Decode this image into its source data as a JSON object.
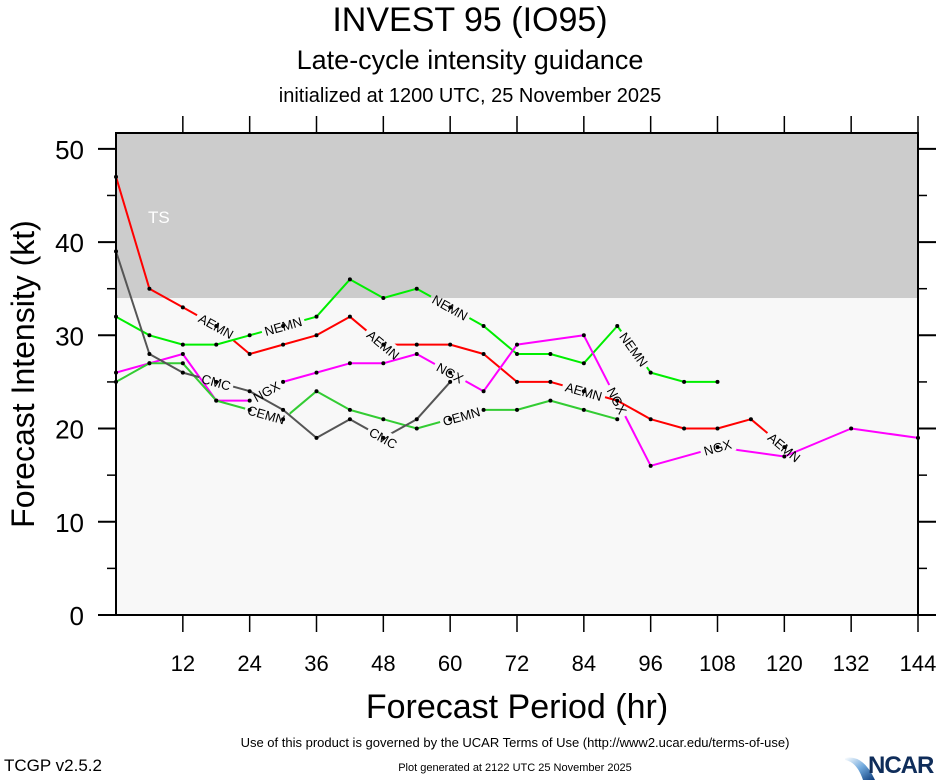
{
  "header": {
    "title": "INVEST 95 (IO95)",
    "subtitle": "Late-cycle intensity guidance",
    "init_line": "initialized at 1200 UTC, 25 November 2025"
  },
  "footer": {
    "terms": "Use of this product is governed by the UCAR Terms of Use (http://www2.ucar.edu/terms-of-use)",
    "generated": "Plot generated at 2122 UTC   25 November 2025",
    "version": "TCGP v2.5.2",
    "logo_text": "NCAR"
  },
  "chart_data": {
    "type": "line",
    "title": "INVEST 95 (IO95)",
    "xlabel": "Forecast Period (hr)",
    "ylabel": "Forecast Intensity (kt)",
    "xlim": [
      0,
      144
    ],
    "ylim": [
      0,
      51.7
    ],
    "xticks": [
      12,
      24,
      36,
      48,
      60,
      72,
      84,
      96,
      108,
      120,
      132,
      144
    ],
    "yticks": [
      0,
      10,
      20,
      30,
      40,
      50
    ],
    "grid": false,
    "bands": [
      {
        "label": "TS",
        "from": 34,
        "to": 51.7,
        "color": "#cccccc"
      }
    ],
    "plot_background": "#f8f8f8",
    "series": [
      {
        "name": "AEMN",
        "color": "#ff0000",
        "x": [
          0,
          6,
          12,
          18,
          24,
          30,
          36,
          42,
          48,
          54,
          60,
          66,
          72,
          78,
          84,
          90,
          96,
          102,
          108,
          114,
          120
        ],
        "values": [
          47,
          35,
          33,
          31,
          28,
          29,
          30,
          32,
          29,
          29,
          29,
          28,
          25,
          25,
          24,
          23,
          21,
          20,
          20,
          21,
          18
        ],
        "label_at": [
          18,
          48,
          84,
          120
        ]
      },
      {
        "name": "NEMN",
        "color": "#00ee00",
        "x": [
          0,
          6,
          12,
          18,
          24,
          30,
          36,
          42,
          48,
          54,
          60,
          66,
          72,
          78,
          84,
          90,
          96,
          102,
          108
        ],
        "values": [
          32,
          30,
          29,
          29,
          30,
          31,
          32,
          36,
          34,
          35,
          33,
          31,
          28,
          28,
          27,
          31,
          26,
          25,
          25
        ],
        "label_at": [
          30,
          60,
          93
        ]
      },
      {
        "name": "NGX",
        "color": "#ff00ff",
        "x": [
          0,
          6,
          12,
          18,
          24,
          30,
          36,
          42,
          48,
          54,
          60,
          66,
          72,
          84,
          96,
          108,
          120,
          132,
          144
        ],
        "values": [
          26,
          27,
          28,
          23,
          23,
          25,
          26,
          27,
          27,
          28,
          26,
          24,
          29,
          30,
          16,
          18,
          17,
          20,
          19
        ],
        "label_at": [
          27,
          60,
          90,
          108
        ]
      },
      {
        "name": "CEMN",
        "color": "#33cc33",
        "x": [
          0,
          6,
          12,
          18,
          24,
          30,
          36,
          42,
          48,
          54,
          60,
          66,
          72,
          78,
          84,
          90
        ],
        "values": [
          25,
          27,
          27,
          23,
          22,
          21,
          24,
          22,
          21,
          20,
          21,
          22,
          22,
          23,
          22,
          21
        ],
        "label_at": [
          27,
          62
        ]
      },
      {
        "name": "CMC",
        "color": "#555555",
        "x": [
          0,
          6,
          12,
          18,
          24,
          30,
          36,
          42,
          48,
          54,
          60
        ],
        "values": [
          39,
          28,
          26,
          25,
          24,
          22,
          19,
          21,
          19,
          21,
          25
        ],
        "label_at": [
          18,
          48
        ]
      }
    ]
  }
}
